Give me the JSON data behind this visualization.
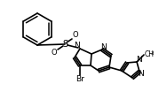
{
  "bg_color": "#ffffff",
  "line_color": "#000000",
  "line_width": 1.2,
  "font_size": 6.5
}
